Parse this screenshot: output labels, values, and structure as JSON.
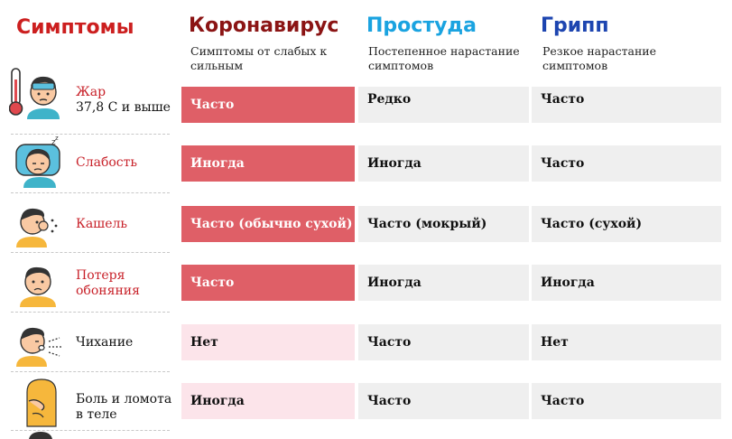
{
  "header": {
    "symptoms": "Симптомы",
    "corona": {
      "title": "Коронавирус",
      "subtitle": "Симптомы от слабых к сильным"
    },
    "cold": {
      "title": "Простуда",
      "subtitle": "Постепенное нарастание симптомов"
    },
    "flu": {
      "title": "Грипп",
      "subtitle": "Резкое нарастание симптомов"
    }
  },
  "rows": [
    {
      "label_line1": "Жар",
      "label_line2": "37,8 С и выше",
      "corona": "Часто",
      "cold": "Редко",
      "flu": "Часто"
    },
    {
      "label_line1": "Слабость",
      "label_line2": "",
      "corona": "Иногда",
      "cold": "Иногда",
      "flu": "Часто"
    },
    {
      "label_line1": "Кашель",
      "label_line2": "",
      "corona": "Часто (обычно сухой)",
      "cold": "Часто (мокрый)",
      "flu": "Часто (сухой)"
    },
    {
      "label_line1": "Потеря",
      "label_line2": "обоняния",
      "corona": "Часто",
      "cold": "Иногда",
      "flu": "Иногда"
    },
    {
      "label_line1": "Чихание",
      "label_line2": "",
      "corona": "Нет",
      "cold": "Часто",
      "flu": "Нет"
    },
    {
      "label_line1": "Боль и ломота",
      "label_line2": "в теле",
      "corona": "Иногда",
      "cold": "Часто",
      "flu": "Часто"
    }
  ],
  "colors": {
    "symptoms_title": "#cc1f1f",
    "corona_title": "#8b1414",
    "cold_title": "#1aa3e0",
    "flu_title": "#1d45b0",
    "corona_strong": "#df5f67",
    "corona_weak": "#fce4ea",
    "neutral_cell": "#efefef"
  }
}
